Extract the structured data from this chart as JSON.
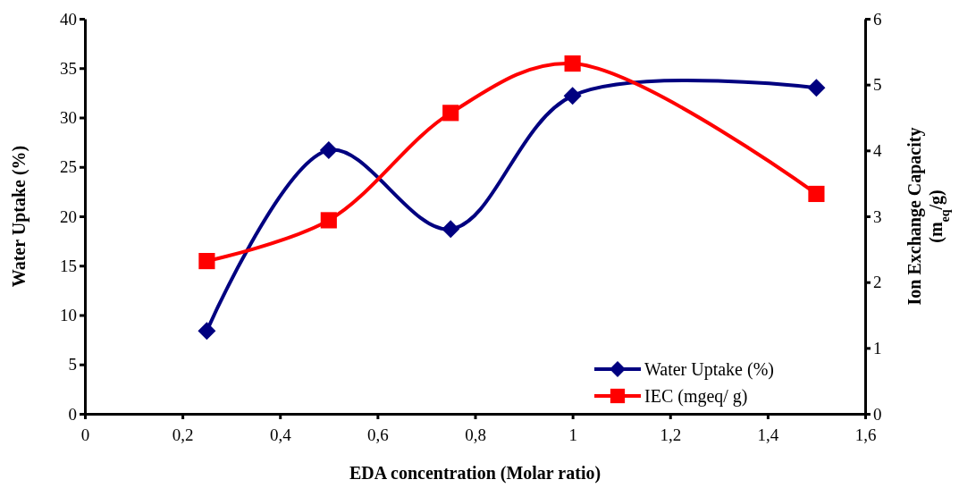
{
  "chart_data": {
    "type": "line",
    "xlabel": "EDA concentration (Molar ratio)",
    "ylabel": "Water Uptake (%)",
    "y2label": "Ion Exchange Capacity (m$_{eq}$/g)",
    "x": [
      0.25,
      0.5,
      0.75,
      1,
      1.5
    ],
    "series": [
      {
        "name": "Water Uptake (%)",
        "color": "#000080",
        "marker": "diamond",
        "values": [
          8.4,
          26.7,
          18.7,
          32.2,
          33.0
        ]
      },
      {
        "name": "IEC (mgeq/ g)",
        "color": "#ff0000",
        "marker": "square",
        "axis": "y2",
        "values": [
          2.32,
          2.94,
          4.57,
          5.32,
          3.34
        ]
      }
    ],
    "xlim": [
      0,
      1.6
    ],
    "xticks": [
      0,
      {
        "value": 0.2,
        "label": "0,2"
      },
      {
        "value": 0.4,
        "label": "0,4"
      },
      {
        "value": 0.6,
        "label": "0,6"
      },
      {
        "value": 0.8,
        "label": "0,8"
      },
      1,
      {
        "value": 1.2,
        "label": "1,2"
      },
      {
        "value": 1.4,
        "label": "1,4"
      },
      {
        "value": 1.6,
        "label": "1,6"
      }
    ],
    "ylim": [
      0,
      40
    ],
    "yticks": [
      0,
      5,
      10,
      15,
      20,
      25,
      30,
      35,
      40
    ],
    "y2lim": [
      0,
      6
    ],
    "y2ticks": [
      0,
      1,
      2,
      3,
      4,
      5,
      6
    ],
    "grid": false,
    "legend": "bottom right",
    "line_style": "solid"
  }
}
